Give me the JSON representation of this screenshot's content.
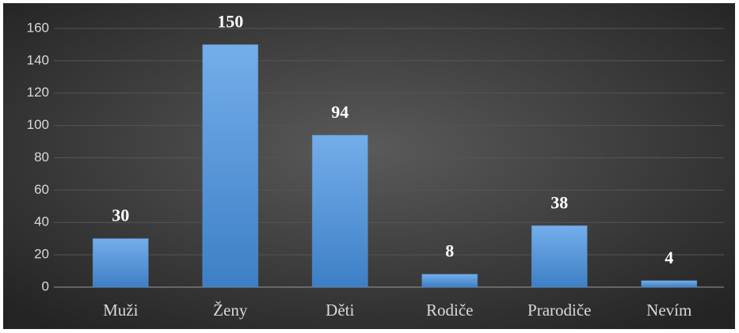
{
  "chart_data": {
    "type": "bar",
    "categories": [
      "Muži",
      "Ženy",
      "Děti",
      "Rodiče",
      "Prarodiče",
      "Nevím"
    ],
    "values": [
      30,
      150,
      94,
      8,
      38,
      4
    ],
    "color": "#5b9bd5",
    "ylim": [
      0,
      160
    ],
    "yticks": [
      0,
      20,
      40,
      60,
      80,
      100,
      120,
      140,
      160
    ],
    "grid": true
  }
}
